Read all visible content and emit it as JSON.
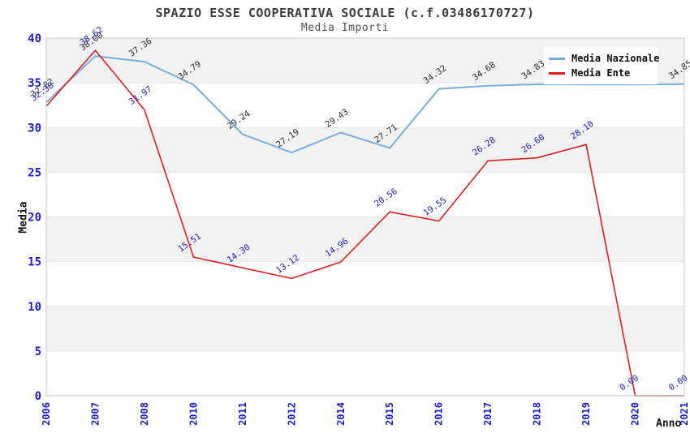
{
  "header": {
    "title": "SPAZIO ESSE COOPERATIVA SOCIALE (c.f.03486170727)",
    "subtitle": "Media Importi"
  },
  "chart_data": {
    "type": "line",
    "title": "SPAZIO ESSE COOPERATIVA SOCIALE (c.f.03486170727)",
    "subtitle": "Media Importi",
    "xlabel": "Anno",
    "ylabel": "Media",
    "ylim": [
      0,
      40
    ],
    "yticks": [
      0,
      5,
      10,
      15,
      20,
      25,
      30,
      35,
      40
    ],
    "grid": "horizontal-bands-every-5",
    "legend_position": "top-right",
    "categories": [
      "2006",
      "2007",
      "2008",
      "2010",
      "2011",
      "2012",
      "2014",
      "2015",
      "2016",
      "2017",
      "2018",
      "2019",
      "2020",
      "2021"
    ],
    "series": [
      {
        "name": "Media Nazionale",
        "color": "#79aede",
        "label_color": "#2e2e2e",
        "values": [
          32.82,
          38.0,
          37.36,
          34.79,
          29.24,
          27.19,
          29.43,
          27.71,
          34.32,
          34.68,
          34.83,
          34.8,
          34.8,
          34.85
        ],
        "note_labels_hidden_behind_legend": [
          "2019",
          "2020"
        ]
      },
      {
        "name": "Media Ente",
        "color": "#e02020",
        "label_color": "#2222c8",
        "values": [
          32.38,
          38.62,
          31.97,
          15.51,
          14.3,
          13.12,
          14.96,
          20.56,
          19.55,
          26.28,
          26.6,
          28.1,
          0.0,
          0.0
        ]
      }
    ],
    "colors": {
      "tick_label": "#1c1ccd",
      "band": "#f2f2f2",
      "gridline": "#e4e4e4",
      "plot_border": "#cacaca",
      "background": "#ffffff"
    }
  }
}
